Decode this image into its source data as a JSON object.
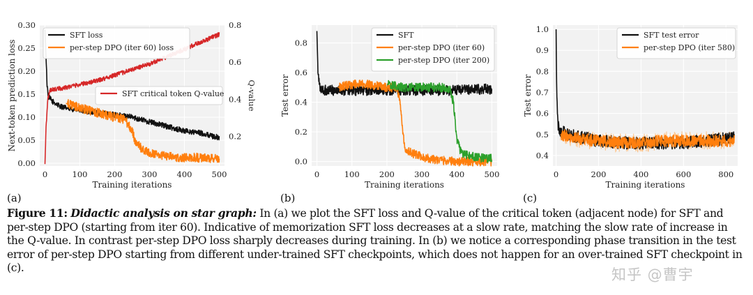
{
  "colors": {
    "black": "#111111",
    "orange": "#ff7f0e",
    "red": "#d62728",
    "green": "#2ca02c",
    "light_orange": "#ffbb78"
  },
  "caption": {
    "label": "Figure 11:",
    "title": "Didactic analysis on star graph:",
    "text": "In (a) we plot the SFT loss and Q-value of the critical token (adjacent node) for SFT and per-step DPO (starting from iter 60). Indicative of memorization SFT loss decreases at a slow rate, matching the slow rate of increase in the Q-value. In contrast per-step DPO loss sharply decreases during training. In (b) we notice a corresponding phase transition in the test error of per-step DPO starting from different under-trained SFT checkpoints, which does not happen for an over-trained SFT checkpoint in (c)."
  },
  "watermark": "知乎 @曹宇",
  "chart_data": [
    {
      "panel": "(a)",
      "type": "line",
      "xlabel": "Training iterations",
      "ylabel": "Next-token prediction loss",
      "y2label": "Q-value",
      "xlim": [
        -15,
        515
      ],
      "ylim": [
        -0.006,
        0.3
      ],
      "y2lim": [
        0.04,
        0.8
      ],
      "xticks": [
        0,
        100,
        200,
        300,
        400,
        500
      ],
      "yticks": [
        0.0,
        0.05,
        0.1,
        0.15,
        0.2,
        0.25,
        0.3
      ],
      "yticklabels": [
        "0.00",
        "0.05",
        "0.10",
        "0.15",
        "0.20",
        "0.25",
        "0.30"
      ],
      "y2ticks": [
        0.2,
        0.4,
        0.6,
        0.8
      ],
      "y2ticklabels": [
        "0.2",
        "0.4",
        "0.6",
        "0.8"
      ],
      "legends": [
        {
          "placement": "upper-left",
          "entries": [
            "SFT loss",
            "per-step DPO (iter 60) loss"
          ]
        },
        {
          "placement": "center-right",
          "entries": [
            "SFT critical token Q-value"
          ]
        }
      ],
      "series": [
        {
          "name": "SFT loss",
          "color": "black",
          "axis": "left",
          "x": [
            0,
            3,
            6,
            10,
            20,
            40,
            60,
            100,
            150,
            200,
            250,
            300,
            350,
            400,
            450,
            500
          ],
          "y": [
            0.29,
            0.23,
            0.17,
            0.145,
            0.135,
            0.125,
            0.12,
            0.115,
            0.11,
            0.105,
            0.1,
            0.09,
            0.08,
            0.07,
            0.065,
            0.055
          ],
          "noise": 0.006
        },
        {
          "name": "per-step DPO (iter 60) loss",
          "color": "orange",
          "axis": "left",
          "x": [
            60,
            100,
            150,
            200,
            230,
            250,
            260,
            280,
            300,
            350,
            400,
            450,
            500
          ],
          "y": [
            0.13,
            0.12,
            0.11,
            0.1,
            0.095,
            0.07,
            0.045,
            0.03,
            0.022,
            0.015,
            0.012,
            0.012,
            0.01
          ],
          "noise": 0.01
        },
        {
          "name": "SFT critical token Q-value",
          "color": "red",
          "axis": "right",
          "x": [
            0,
            3,
            8,
            15,
            50,
            100,
            150,
            200,
            250,
            300,
            350,
            400,
            450,
            500
          ],
          "y": [
            0.05,
            0.25,
            0.4,
            0.45,
            0.46,
            0.48,
            0.5,
            0.53,
            0.56,
            0.59,
            0.63,
            0.67,
            0.71,
            0.75
          ],
          "noise": 0.012
        }
      ]
    },
    {
      "panel": "(b)",
      "type": "line",
      "xlabel": "Training iterations",
      "ylabel": "Test error",
      "xlim": [
        -15,
        515
      ],
      "ylim": [
        -0.03,
        0.92
      ],
      "xticks": [
        0,
        100,
        200,
        300,
        400,
        500
      ],
      "yticks": [
        0.0,
        0.2,
        0.4,
        0.6,
        0.8
      ],
      "yticklabels": [
        "0.0",
        "0.2",
        "0.4",
        "0.6",
        "0.8"
      ],
      "legends": [
        {
          "placement": "upper-right",
          "entries": [
            "SFT",
            "per-step DPO (iter 60)",
            "per-step DPO (iter 200)"
          ]
        }
      ],
      "series": [
        {
          "name": "SFT",
          "color": "black",
          "x": [
            0,
            3,
            8,
            15,
            100,
            200,
            300,
            400,
            500
          ],
          "y": [
            0.88,
            0.6,
            0.5,
            0.48,
            0.48,
            0.48,
            0.48,
            0.48,
            0.49
          ],
          "noise": 0.035
        },
        {
          "name": "per-step DPO (iter 60)",
          "color": "orange",
          "x": [
            60,
            100,
            150,
            200,
            230,
            240,
            250,
            260,
            280,
            300,
            350,
            400,
            500
          ],
          "y": [
            0.5,
            0.52,
            0.52,
            0.5,
            0.5,
            0.35,
            0.1,
            0.07,
            0.05,
            0.03,
            0.01,
            0.0,
            0.0
          ],
          "noise": 0.03
        },
        {
          "name": "per-step DPO (iter 200)",
          "color": "green",
          "x": [
            200,
            250,
            300,
            350,
            380,
            390,
            400,
            410,
            430,
            460,
            500
          ],
          "y": [
            0.52,
            0.5,
            0.5,
            0.5,
            0.49,
            0.4,
            0.15,
            0.07,
            0.04,
            0.025,
            0.02
          ],
          "noise": 0.03
        }
      ]
    },
    {
      "panel": "(c)",
      "type": "line",
      "xlabel": "Training iterations",
      "ylabel": "Test error",
      "xlim": [
        -15,
        855
      ],
      "ylim": [
        0.35,
        1.02
      ],
      "xticks": [
        0,
        200,
        400,
        600,
        800
      ],
      "yticks": [
        0.4,
        0.5,
        0.6,
        0.7,
        0.8,
        0.9,
        1.0
      ],
      "yticklabels": [
        "0.4",
        "0.5",
        "0.6",
        "0.7",
        "0.8",
        "0.9",
        "1.0"
      ],
      "legends": [
        {
          "placement": "upper-right",
          "entries": [
            "SFT test error",
            "per-step DPO (iter 580)"
          ]
        }
      ],
      "series": [
        {
          "name": "SFT test error",
          "color": "black",
          "x": [
            0,
            3,
            8,
            15,
            50,
            100,
            200,
            300,
            400,
            500,
            600,
            700,
            800,
            840
          ],
          "y": [
            1.0,
            0.7,
            0.55,
            0.52,
            0.5,
            0.49,
            0.47,
            0.46,
            0.46,
            0.46,
            0.46,
            0.47,
            0.48,
            0.49
          ],
          "noise": 0.03
        },
        {
          "name": "per-step DPO (iter 580)",
          "color": "orange",
          "x": [
            20,
            100,
            200,
            300,
            400,
            500,
            600,
            700,
            800,
            840
          ],
          "y": [
            0.5,
            0.48,
            0.47,
            0.46,
            0.46,
            0.47,
            0.47,
            0.47,
            0.47,
            0.47
          ],
          "noise": 0.028
        }
      ]
    }
  ]
}
